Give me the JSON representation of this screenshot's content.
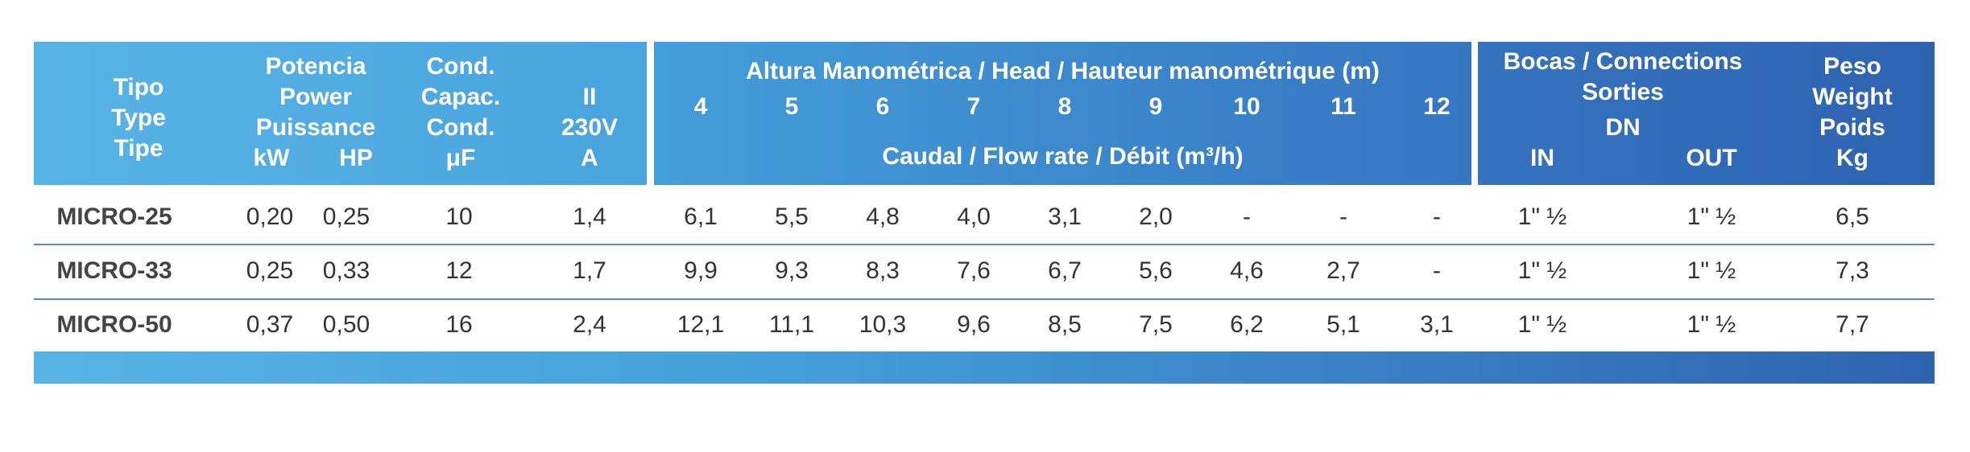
{
  "header": {
    "tipo": [
      "Tipo",
      "Type",
      "Tipe"
    ],
    "potencia": [
      "Potencia",
      "Power",
      "Puissance"
    ],
    "kw": "kW",
    "hp": "HP",
    "cond": [
      "Cond.",
      "Capac.",
      "Cond."
    ],
    "uf": "μF",
    "amp": [
      "II",
      "230V",
      "A"
    ],
    "altura": "Altura Manométrica / Head / Hauteur manométrique (m)",
    "heads": [
      "4",
      "5",
      "6",
      "7",
      "8",
      "9",
      "10",
      "11",
      "12"
    ],
    "caudal": "Caudal / Flow rate / Débit (m³/h)",
    "bocas": [
      "Bocas / Connections",
      "Sorties"
    ],
    "dn": "DN",
    "in": "IN",
    "out": "OUT",
    "peso": [
      "Peso",
      "Weight",
      "Poids",
      "Kg"
    ]
  },
  "rows": [
    {
      "model": "MICRO-25",
      "kw": "0,20",
      "hp": "0,25",
      "uf": "10",
      "amp": "1,4",
      "flows": [
        "6,1",
        "5,5",
        "4,8",
        "4,0",
        "3,1",
        "2,0",
        "-",
        "-",
        "-"
      ],
      "in": "1\" ½",
      "out": "1\" ½",
      "weight": "6,5"
    },
    {
      "model": "MICRO-33",
      "kw": "0,25",
      "hp": "0,33",
      "uf": "12",
      "amp": "1,7",
      "flows": [
        "9,9",
        "9,3",
        "8,3",
        "7,6",
        "6,7",
        "5,6",
        "4,6",
        "2,7",
        "-"
      ],
      "in": "1\" ½",
      "out": "1\" ½",
      "weight": "7,3"
    },
    {
      "model": "MICRO-50",
      "kw": "0,37",
      "hp": "0,50",
      "uf": "16",
      "amp": "2,4",
      "flows": [
        "12,1",
        "11,1",
        "10,3",
        "9,6",
        "8,5",
        "7,5",
        "6,2",
        "5,1",
        "3,1"
      ],
      "in": "1\" ½",
      "out": "1\" ½",
      "weight": "7,7"
    }
  ]
}
